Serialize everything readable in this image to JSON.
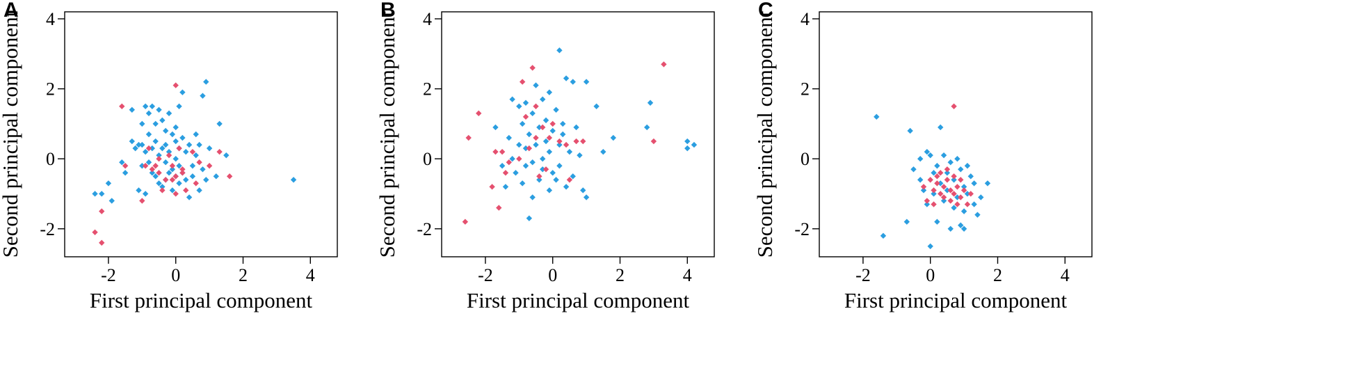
{
  "colors": {
    "series_1": "#2b9ee0",
    "series_2": "#e5506f"
  },
  "chart_data": [
    {
      "type": "scatter",
      "panel_label": "A",
      "xlabel": "First principal component",
      "ylabel": "Second principal component",
      "xlim": [
        -3.3,
        4.8
      ],
      "ylim": [
        -2.8,
        4.2
      ],
      "xticks": [
        -2,
        0,
        2,
        4
      ],
      "xtick_labels": [
        "-2",
        "0",
        "2",
        "4"
      ],
      "yticks": [
        -2,
        0,
        2,
        4
      ],
      "ytick_labels": [
        "-2",
        "0",
        "2",
        "4"
      ],
      "grid": false,
      "series": [
        {
          "color": "#2b9ee0",
          "points": [
            [
              -2.4,
              -1.0
            ],
            [
              -2.2,
              -1.0
            ],
            [
              -2.0,
              -0.7
            ],
            [
              -1.9,
              -1.2
            ],
            [
              -1.6,
              -0.1
            ],
            [
              -1.5,
              -0.4
            ],
            [
              -1.3,
              0.5
            ],
            [
              -1.3,
              1.4
            ],
            [
              -1.2,
              0.3
            ],
            [
              -1.1,
              -0.9
            ],
            [
              -1.1,
              0.4
            ],
            [
              -1.0,
              1.0
            ],
            [
              -1.0,
              0.4
            ],
            [
              -1.0,
              -0.2
            ],
            [
              -0.9,
              1.5
            ],
            [
              -0.9,
              0.2
            ],
            [
              -0.9,
              -1.0
            ],
            [
              -0.8,
              -0.1
            ],
            [
              -0.8,
              0.7
            ],
            [
              -0.8,
              1.3
            ],
            [
              -0.7,
              -0.4
            ],
            [
              -0.7,
              0.3
            ],
            [
              -0.7,
              1.5
            ],
            [
              -0.6,
              1.0
            ],
            [
              -0.6,
              0.5
            ],
            [
              -0.6,
              -0.5
            ],
            [
              -0.5,
              -0.7
            ],
            [
              -0.5,
              0.1
            ],
            [
              -0.5,
              1.4
            ],
            [
              -0.4,
              1.1
            ],
            [
              -0.4,
              0.3
            ],
            [
              -0.4,
              -0.8
            ],
            [
              -0.3,
              0.8
            ],
            [
              -0.3,
              0.4
            ],
            [
              -0.3,
              -0.1
            ],
            [
              -0.3,
              -0.6
            ],
            [
              -0.2,
              1.3
            ],
            [
              -0.2,
              0.2
            ],
            [
              -0.2,
              -0.4
            ],
            [
              -0.1,
              0.7
            ],
            [
              -0.1,
              -0.3
            ],
            [
              -0.1,
              -0.9
            ],
            [
              0.0,
              0.9
            ],
            [
              0.0,
              0.5
            ],
            [
              0.0,
              0.0
            ],
            [
              0.0,
              -0.5
            ],
            [
              0.1,
              1.5
            ],
            [
              0.1,
              0.3
            ],
            [
              0.1,
              -0.2
            ],
            [
              0.1,
              -0.7
            ],
            [
              0.2,
              1.9
            ],
            [
              0.2,
              0.6
            ],
            [
              0.2,
              -0.4
            ],
            [
              0.3,
              0.2
            ],
            [
              0.3,
              -0.6
            ],
            [
              0.4,
              -1.1
            ],
            [
              0.4,
              0.4
            ],
            [
              0.5,
              -0.2
            ],
            [
              0.5,
              -0.5
            ],
            [
              0.6,
              0.7
            ],
            [
              0.6,
              0.1
            ],
            [
              0.7,
              0.4
            ],
            [
              0.7,
              -0.9
            ],
            [
              0.8,
              1.8
            ],
            [
              0.8,
              -0.3
            ],
            [
              0.9,
              2.2
            ],
            [
              0.9,
              -0.6
            ],
            [
              1.0,
              0.3
            ],
            [
              1.2,
              -0.5
            ],
            [
              1.3,
              1.0
            ],
            [
              1.5,
              0.1
            ],
            [
              3.5,
              -0.6
            ]
          ]
        },
        {
          "color": "#e5506f",
          "points": [
            [
              -2.4,
              -2.1
            ],
            [
              -2.2,
              -2.4
            ],
            [
              -2.2,
              -1.5
            ],
            [
              -1.6,
              1.5
            ],
            [
              -1.5,
              -0.2
            ],
            [
              -1.0,
              -1.2
            ],
            [
              -0.9,
              -0.2
            ],
            [
              -0.8,
              0.3
            ],
            [
              -0.7,
              -0.3
            ],
            [
              -0.6,
              -0.2
            ],
            [
              -0.5,
              0.0
            ],
            [
              -0.5,
              -0.4
            ],
            [
              -0.4,
              -0.9
            ],
            [
              -0.3,
              -0.6
            ],
            [
              -0.2,
              0.1
            ],
            [
              -0.1,
              -0.2
            ],
            [
              -0.1,
              -0.6
            ],
            [
              0.0,
              2.1
            ],
            [
              0.0,
              -0.5
            ],
            [
              0.0,
              -1.0
            ],
            [
              0.1,
              0.3
            ],
            [
              0.2,
              -0.3
            ],
            [
              0.2,
              -0.4
            ],
            [
              0.3,
              -0.9
            ],
            [
              0.5,
              0.2
            ],
            [
              0.6,
              -0.7
            ],
            [
              0.7,
              -0.1
            ],
            [
              1.0,
              -0.2
            ],
            [
              1.3,
              0.2
            ],
            [
              1.6,
              -0.5
            ]
          ]
        }
      ]
    },
    {
      "type": "scatter",
      "panel_label": "B",
      "xlabel": "First principal component",
      "ylabel": "Second principal component",
      "xlim": [
        -3.3,
        4.8
      ],
      "ylim": [
        -2.8,
        4.2
      ],
      "xticks": [
        -2,
        0,
        2,
        4
      ],
      "xtick_labels": [
        "-2",
        "0",
        "2",
        "4"
      ],
      "yticks": [
        -2,
        0,
        2,
        4
      ],
      "ytick_labels": [
        "-2",
        "0",
        "2",
        "4"
      ],
      "grid": false,
      "series": [
        {
          "color": "#2b9ee0",
          "points": [
            [
              -1.7,
              0.9
            ],
            [
              -1.5,
              -0.2
            ],
            [
              -1.4,
              -0.8
            ],
            [
              -1.3,
              0.6
            ],
            [
              -1.2,
              1.7
            ],
            [
              -1.2,
              0.0
            ],
            [
              -1.1,
              -0.4
            ],
            [
              -1.0,
              1.5
            ],
            [
              -1.0,
              0.4
            ],
            [
              -0.9,
              -0.7
            ],
            [
              -0.9,
              1.0
            ],
            [
              -0.8,
              0.3
            ],
            [
              -0.8,
              -0.2
            ],
            [
              -0.8,
              1.6
            ],
            [
              -0.7,
              -1.7
            ],
            [
              -0.7,
              0.7
            ],
            [
              -0.6,
              -0.1
            ],
            [
              -0.6,
              1.3
            ],
            [
              -0.6,
              -1.1
            ],
            [
              -0.5,
              0.4
            ],
            [
              -0.5,
              2.1
            ],
            [
              -0.4,
              -0.6
            ],
            [
              -0.4,
              0.9
            ],
            [
              -0.3,
              0.0
            ],
            [
              -0.3,
              1.7
            ],
            [
              -0.3,
              -0.3
            ],
            [
              -0.2,
              0.5
            ],
            [
              -0.2,
              1.1
            ],
            [
              -0.1,
              -0.9
            ],
            [
              -0.1,
              0.2
            ],
            [
              -0.1,
              1.9
            ],
            [
              0.0,
              0.8
            ],
            [
              0.0,
              -0.4
            ],
            [
              0.1,
              1.4
            ],
            [
              0.1,
              -0.6
            ],
            [
              0.2,
              3.1
            ],
            [
              0.2,
              0.4
            ],
            [
              0.2,
              -0.2
            ],
            [
              0.3,
              1.0
            ],
            [
              0.3,
              0.7
            ],
            [
              0.4,
              -0.8
            ],
            [
              0.4,
              2.3
            ],
            [
              0.5,
              0.2
            ],
            [
              0.6,
              2.2
            ],
            [
              0.6,
              -0.5
            ],
            [
              0.7,
              0.9
            ],
            [
              0.8,
              0.1
            ],
            [
              0.9,
              -0.9
            ],
            [
              1.0,
              2.2
            ],
            [
              1.0,
              -1.1
            ],
            [
              1.3,
              1.5
            ],
            [
              1.5,
              0.2
            ],
            [
              1.8,
              0.6
            ],
            [
              2.8,
              0.9
            ],
            [
              2.9,
              1.6
            ],
            [
              4.0,
              0.5
            ],
            [
              4.0,
              0.3
            ],
            [
              4.2,
              0.4
            ]
          ]
        },
        {
          "color": "#e5506f",
          "points": [
            [
              -2.6,
              -1.8
            ],
            [
              -2.5,
              0.6
            ],
            [
              -2.2,
              1.3
            ],
            [
              -1.8,
              -0.8
            ],
            [
              -1.7,
              0.2
            ],
            [
              -1.6,
              -1.4
            ],
            [
              -1.5,
              0.2
            ],
            [
              -1.4,
              -0.4
            ],
            [
              -1.3,
              -0.1
            ],
            [
              -1.0,
              0.0
            ],
            [
              -0.9,
              2.2
            ],
            [
              -0.8,
              1.2
            ],
            [
              -0.7,
              0.3
            ],
            [
              -0.6,
              2.6
            ],
            [
              -0.5,
              1.5
            ],
            [
              -0.5,
              0.6
            ],
            [
              -0.4,
              -0.5
            ],
            [
              -0.3,
              0.9
            ],
            [
              -0.2,
              -0.3
            ],
            [
              -0.1,
              0.6
            ],
            [
              0.0,
              1.0
            ],
            [
              0.2,
              0.5
            ],
            [
              0.4,
              0.4
            ],
            [
              0.5,
              -0.6
            ],
            [
              0.7,
              0.5
            ],
            [
              0.9,
              0.5
            ],
            [
              3.0,
              0.5
            ],
            [
              3.3,
              2.7
            ]
          ]
        }
      ]
    },
    {
      "type": "scatter",
      "panel_label": "C",
      "xlabel": "First principal component",
      "ylabel": "Second principal component",
      "xlim": [
        -3.3,
        4.8
      ],
      "ylim": [
        -2.8,
        4.2
      ],
      "xticks": [
        -2,
        0,
        2,
        4
      ],
      "xtick_labels": [
        "-2",
        "0",
        "2",
        "4"
      ],
      "yticks": [
        -2,
        0,
        2,
        4
      ],
      "ytick_labels": [
        "-2",
        "0",
        "2",
        "4"
      ],
      "grid": false,
      "series": [
        {
          "color": "#2b9ee0",
          "points": [
            [
              -1.6,
              1.2
            ],
            [
              -1.4,
              -2.2
            ],
            [
              -0.7,
              -1.8
            ],
            [
              -0.6,
              0.8
            ],
            [
              -0.5,
              -0.3
            ],
            [
              -0.3,
              -0.6
            ],
            [
              -0.3,
              0.0
            ],
            [
              -0.2,
              -0.9
            ],
            [
              -0.1,
              -1.3
            ],
            [
              -0.1,
              0.2
            ],
            [
              0.0,
              -2.5
            ],
            [
              0.0,
              0.1
            ],
            [
              0.1,
              -0.4
            ],
            [
              0.1,
              -1.0
            ],
            [
              0.2,
              -1.8
            ],
            [
              0.2,
              -0.2
            ],
            [
              0.3,
              0.9
            ],
            [
              0.3,
              -0.7
            ],
            [
              0.4,
              0.1
            ],
            [
              0.4,
              -1.2
            ],
            [
              0.5,
              -0.4
            ],
            [
              0.5,
              -0.9
            ],
            [
              0.6,
              -2.0
            ],
            [
              0.6,
              -0.1
            ],
            [
              0.7,
              -1.4
            ],
            [
              0.7,
              -0.6
            ],
            [
              0.8,
              0.0
            ],
            [
              0.8,
              -1.1
            ],
            [
              0.9,
              -0.3
            ],
            [
              0.9,
              -1.9
            ],
            [
              1.0,
              -0.8
            ],
            [
              1.0,
              -2.0
            ],
            [
              1.0,
              -1.5
            ],
            [
              1.1,
              -0.2
            ],
            [
              1.1,
              -1.0
            ],
            [
              1.2,
              -0.5
            ],
            [
              1.3,
              -1.3
            ],
            [
              1.3,
              -0.7
            ],
            [
              1.4,
              -1.6
            ],
            [
              1.5,
              -1.1
            ],
            [
              1.7,
              -0.7
            ]
          ]
        },
        {
          "color": "#e5506f",
          "points": [
            [
              -0.2,
              -0.8
            ],
            [
              -0.1,
              -1.2
            ],
            [
              0.0,
              -0.6
            ],
            [
              0.1,
              -0.9
            ],
            [
              0.1,
              -1.3
            ],
            [
              0.2,
              -0.5
            ],
            [
              0.2,
              -0.7
            ],
            [
              0.3,
              -1.0
            ],
            [
              0.3,
              -0.4
            ],
            [
              0.4,
              -0.8
            ],
            [
              0.4,
              -1.1
            ],
            [
              0.5,
              -0.6
            ],
            [
              0.5,
              -0.3
            ],
            [
              0.6,
              -0.9
            ],
            [
              0.6,
              -1.2
            ],
            [
              0.7,
              1.5
            ],
            [
              0.7,
              -0.5
            ],
            [
              0.7,
              -1.0
            ],
            [
              0.8,
              -0.8
            ],
            [
              0.8,
              -1.3
            ],
            [
              0.9,
              -0.6
            ],
            [
              0.9,
              -1.1
            ],
            [
              1.0,
              -0.9
            ],
            [
              1.1,
              -1.3
            ],
            [
              1.2,
              -1.0
            ]
          ]
        }
      ]
    }
  ]
}
